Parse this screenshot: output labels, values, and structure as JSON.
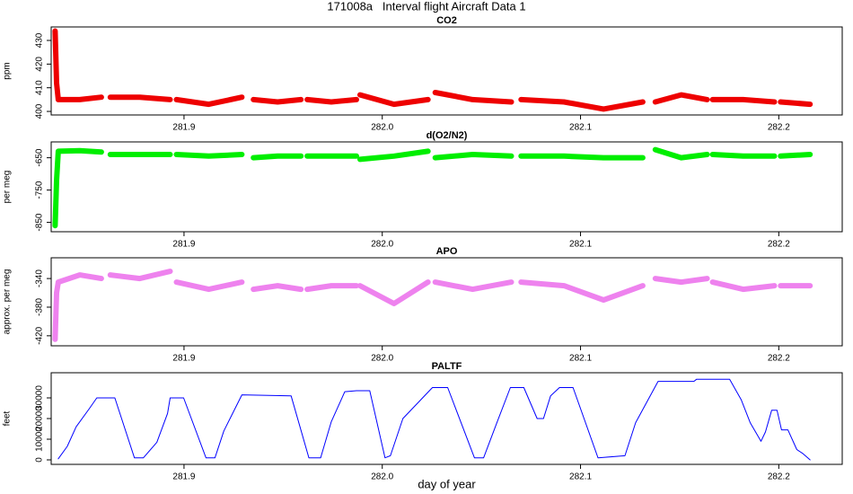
{
  "title": "171008a   Interval flight Aircraft Data 1",
  "chart_data": [
    {
      "type": "scatter",
      "title": "CO2",
      "y_label": "ppm",
      "color": "#ee0000",
      "x": [
        281.835,
        281.8357,
        281.8366,
        281.8474,
        281.8583,
        281.8605,
        281.8628,
        281.8777,
        281.893,
        281.8944,
        281.8962,
        281.9125,
        281.9292,
        281.9319,
        281.935,
        281.9472,
        281.959,
        281.9603,
        281.9621,
        281.9743,
        281.987,
        281.9879,
        281.9888,
        282.0059,
        282.0231,
        282.0249,
        282.0267,
        282.0456,
        282.0651,
        282.0673,
        282.07,
        282.0917,
        282.1116,
        282.1314,
        282.1346,
        282.1377,
        282.1508,
        282.1639,
        282.1653,
        282.1666,
        282.182,
        282.1978,
        282.1992,
        282.2009,
        282.2158
      ],
      "values": [
        434,
        412,
        405,
        405,
        406,
        null,
        406,
        406,
        405,
        null,
        405,
        403,
        406,
        null,
        405,
        404,
        405,
        null,
        405,
        404,
        405,
        null,
        407,
        403,
        405,
        null,
        408,
        405,
        404,
        null,
        405,
        404,
        401,
        404,
        null,
        404,
        407,
        405,
        null,
        405,
        405,
        404,
        null,
        404,
        403
      ],
      "xlim": [
        281.833,
        282.232
      ],
      "xticks": [
        281.9,
        {
          "value": 282,
          "label": "282.0"
        },
        282.1,
        282.2
      ],
      "ylim": [
        398.5,
        435.7
      ],
      "yticks": [
        400,
        410,
        420,
        430
      ]
    },
    {
      "type": "scatter",
      "title": "d(O2/N2)",
      "y_label": "per meg",
      "color": "#00ee00",
      "x": [
        281.835,
        281.8357,
        281.8366,
        281.8474,
        281.8583,
        281.8605,
        281.8628,
        281.8777,
        281.893,
        281.8944,
        281.8962,
        281.9125,
        281.9292,
        281.9319,
        281.935,
        281.9472,
        281.959,
        281.9603,
        281.9621,
        281.9743,
        281.987,
        281.9879,
        281.9888,
        282.0059,
        282.0231,
        282.0249,
        282.0267,
        282.0456,
        282.0651,
        282.0673,
        282.07,
        282.0917,
        282.1116,
        282.1314,
        282.1346,
        282.1377,
        282.1508,
        282.1639,
        282.1653,
        282.1666,
        282.182,
        282.1978,
        282.1992,
        282.2009,
        282.2158
      ],
      "values": [
        -860,
        -720,
        -630,
        -628,
        -632,
        null,
        -640,
        -640,
        -640,
        null,
        -640,
        -645,
        -640,
        null,
        -650,
        -645,
        -645,
        null,
        -645,
        -645,
        -645,
        null,
        -655,
        -645,
        -630,
        null,
        -650,
        -640,
        -645,
        null,
        -645,
        -645,
        -650,
        -650,
        null,
        -625,
        -650,
        -640,
        null,
        -640,
        -645,
        -645,
        null,
        -645,
        -640
      ],
      "xlim": [
        281.833,
        282.232
      ],
      "xticks": [
        281.9,
        {
          "value": 282,
          "label": "282.0"
        },
        282.1,
        282.2
      ],
      "ylim": [
        -879,
        -601
      ],
      "yticks": [
        -650,
        -750,
        -850
      ]
    },
    {
      "type": "scatter",
      "title": "APO",
      "y_label": "approx. per meg",
      "color": "#ee82ee",
      "x": [
        281.835,
        281.8357,
        281.8366,
        281.8474,
        281.8583,
        281.8605,
        281.8628,
        281.8777,
        281.893,
        281.8944,
        281.8962,
        281.9125,
        281.9292,
        281.9319,
        281.935,
        281.9472,
        281.959,
        281.9603,
        281.9621,
        281.9743,
        281.987,
        281.9879,
        281.9888,
        282.0059,
        282.0231,
        282.0249,
        282.0267,
        282.0456,
        282.0651,
        282.0673,
        282.07,
        282.0917,
        282.1116,
        282.1314,
        282.1346,
        282.1377,
        282.1508,
        282.1639,
        282.1653,
        282.1666,
        282.182,
        282.1978,
        282.1992,
        282.2009,
        282.2158
      ],
      "values": [
        -425,
        -360,
        -345,
        -335,
        -340,
        null,
        -335,
        -340,
        -330,
        null,
        -345,
        -355,
        -345,
        null,
        -355,
        -350,
        -355,
        null,
        -355,
        -350,
        -350,
        null,
        -350,
        -375,
        -345,
        null,
        -345,
        -355,
        -345,
        null,
        -345,
        -350,
        -370,
        -350,
        null,
        -340,
        -345,
        -340,
        null,
        -345,
        -355,
        -350,
        null,
        -350,
        -350
      ],
      "xlim": [
        281.833,
        282.232
      ],
      "xticks": [
        281.9,
        {
          "value": 282,
          "label": "282.0"
        },
        282.1,
        282.2
      ],
      "ylim": [
        -434,
        -311
      ],
      "yticks": [
        -340,
        -380,
        -420
      ]
    },
    {
      "type": "line",
      "title": "PALTF",
      "y_label": "feet",
      "x_label": "day of year",
      "color": "#0000ff",
      "x": [
        281.8366,
        281.8411,
        281.8456,
        281.8524,
        281.856,
        281.8651,
        281.875,
        281.8795,
        281.8863,
        281.8917,
        281.893,
        281.8998,
        281.9111,
        281.9156,
        281.9201,
        281.9292,
        281.954,
        281.963,
        281.9689,
        281.9743,
        281.9811,
        281.987,
        281.9937,
        282.0014,
        282.0041,
        282.0104,
        282.0253,
        282.033,
        282.0465,
        282.0511,
        282.0578,
        282.0646,
        282.0714,
        282.0781,
        282.0813,
        282.0849,
        282.0894,
        282.0962,
        282.1088,
        282.1224,
        282.1278,
        282.1391,
        282.1572,
        282.1585,
        282.1752,
        282.1811,
        282.1856,
        282.191,
        282.1933,
        282.1964,
        282.1991,
        282.2014,
        282.2046,
        282.2091,
        282.2122,
        282.2158
      ],
      "values": [
        500,
        6500,
        16000,
        25000,
        30000,
        30000,
        1000,
        1000,
        8500,
        22500,
        30000,
        30000,
        1000,
        1000,
        14000,
        31500,
        31000,
        1000,
        1000,
        18500,
        33000,
        33500,
        33500,
        1000,
        2000,
        20000,
        35000,
        35000,
        1000,
        1000,
        18000,
        35000,
        35000,
        20000,
        20000,
        31000,
        35000,
        35000,
        1000,
        2000,
        18000,
        38000,
        38000,
        39000,
        39000,
        29000,
        18000,
        9000,
        13500,
        24000,
        24000,
        14500,
        14500,
        5000,
        3000,
        0
      ],
      "xlim": [
        281.833,
        282.232
      ],
      "xticks": [
        281.9,
        {
          "value": 282,
          "label": "282.0"
        },
        282.1,
        282.2
      ],
      "ylim": [
        -2174,
        42174
      ],
      "yticks": [
        0,
        10000,
        20000,
        30000
      ]
    }
  ]
}
